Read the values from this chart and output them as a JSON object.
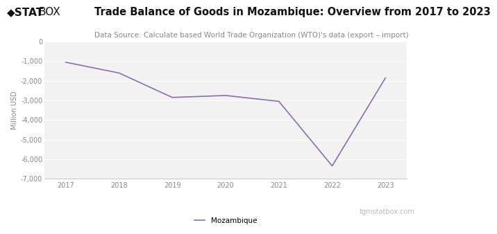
{
  "title": "Trade Balance of Goods in Mozambique: Overview from 2017 to 2023",
  "subtitle": "Data Source: Calculate based World Trade Organization (WTO)'s data (export – import)",
  "years": [
    2017,
    2018,
    2019,
    2020,
    2021,
    2022,
    2023
  ],
  "values": [
    -1050,
    -1600,
    -2850,
    -2750,
    -3050,
    -6350,
    -1850
  ],
  "line_color": "#8b6bb1",
  "ylabel": "Million USD",
  "ylim": [
    -7000,
    0
  ],
  "yticks": [
    0,
    -1000,
    -2000,
    -3000,
    -4000,
    -5000,
    -6000,
    -7000
  ],
  "bg_color": "#ffffff",
  "plot_bg_color": "#f2f2f2",
  "grid_color": "#ffffff",
  "legend_label": "Mozambique",
  "watermark": "tgmstatbox.com",
  "title_fontsize": 10.5,
  "subtitle_fontsize": 7.5,
  "ylabel_fontsize": 7,
  "tick_fontsize": 7,
  "legend_fontsize": 7.5,
  "watermark_fontsize": 7,
  "logo_text1": "◆STAT",
  "logo_text2": "BOX",
  "logo_fontsize": 11
}
